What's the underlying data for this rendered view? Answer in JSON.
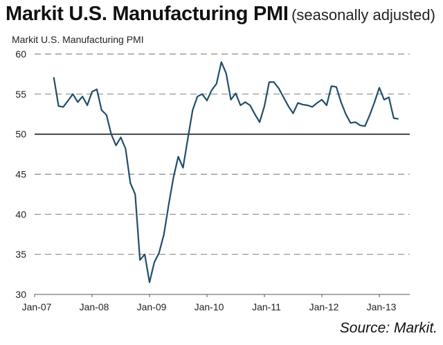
{
  "title": {
    "main": "Markit U.S. Manufacturing PMI",
    "suffix": "(seasonally adjusted)"
  },
  "source": "Source: Markit.",
  "chart_data": {
    "type": "line",
    "title": "Markit U.S. Manufacturing PMI (seasonally adjusted)",
    "subtitle": "Markit U.S. Manufacturing PMI",
    "xlabel": "",
    "ylabel": "",
    "ylim": [
      30,
      60
    ],
    "yticks": [
      30,
      35,
      40,
      45,
      50,
      55,
      60
    ],
    "xlim": [
      "Jan-07",
      "Jul-13"
    ],
    "xtick_labels": [
      "Jan-07",
      "Jan-08",
      "Jan-09",
      "Jan-10",
      "Jan-11",
      "Jan-12",
      "Jan-13"
    ],
    "grid": "horizontal dashed",
    "reference_line": 50,
    "line_color": "#1f4e6b",
    "series": [
      {
        "name": "Markit U.S. Manufacturing PMI",
        "start": "May-07",
        "frequency": "monthly",
        "values": [
          57.1,
          53.5,
          53.4,
          54.2,
          55.0,
          54.0,
          54.7,
          53.6,
          55.3,
          55.6,
          53.0,
          52.4,
          50.0,
          48.6,
          49.6,
          48.2,
          43.9,
          42.5,
          34.3,
          35.0,
          31.5,
          34.0,
          35.2,
          37.5,
          41.2,
          44.6,
          47.2,
          45.8,
          49.4,
          53.0,
          54.7,
          55.0,
          54.2,
          55.5,
          56.3,
          59.0,
          57.6,
          54.3,
          55.1,
          53.6,
          54.0,
          53.6,
          52.5,
          51.5,
          53.5,
          56.5,
          56.5,
          55.7,
          54.6,
          53.5,
          52.6,
          53.9,
          53.7,
          53.6,
          53.4,
          53.9,
          54.3,
          53.6,
          56.0,
          55.9,
          54.0,
          52.5,
          51.4,
          51.5,
          51.1,
          51.0,
          52.4,
          54.0,
          55.8,
          54.3,
          54.6,
          52.0,
          51.9
        ]
      }
    ]
  }
}
